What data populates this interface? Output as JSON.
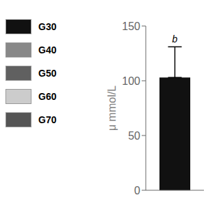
{
  "chart_data": {
    "type": "bar",
    "categories": [
      null
    ],
    "values": [
      103
    ],
    "error_lower": [
      0
    ],
    "error_upper": [
      28
    ],
    "color": "#111111",
    "ylabel": "μ mmol/L",
    "ylim": [
      0,
      150
    ],
    "yticks": [
      0,
      50,
      100,
      150
    ],
    "annotations": [
      "b"
    ],
    "legend": "left",
    "legend_entries": [
      {
        "name": "G30",
        "color": "#111111"
      },
      {
        "name": "G40",
        "color": "#888888"
      },
      {
        "name": "G50",
        "color": "#606060"
      },
      {
        "name": "G60",
        "color": "#cccccc"
      },
      {
        "name": "G70",
        "color": "#555555"
      }
    ]
  }
}
